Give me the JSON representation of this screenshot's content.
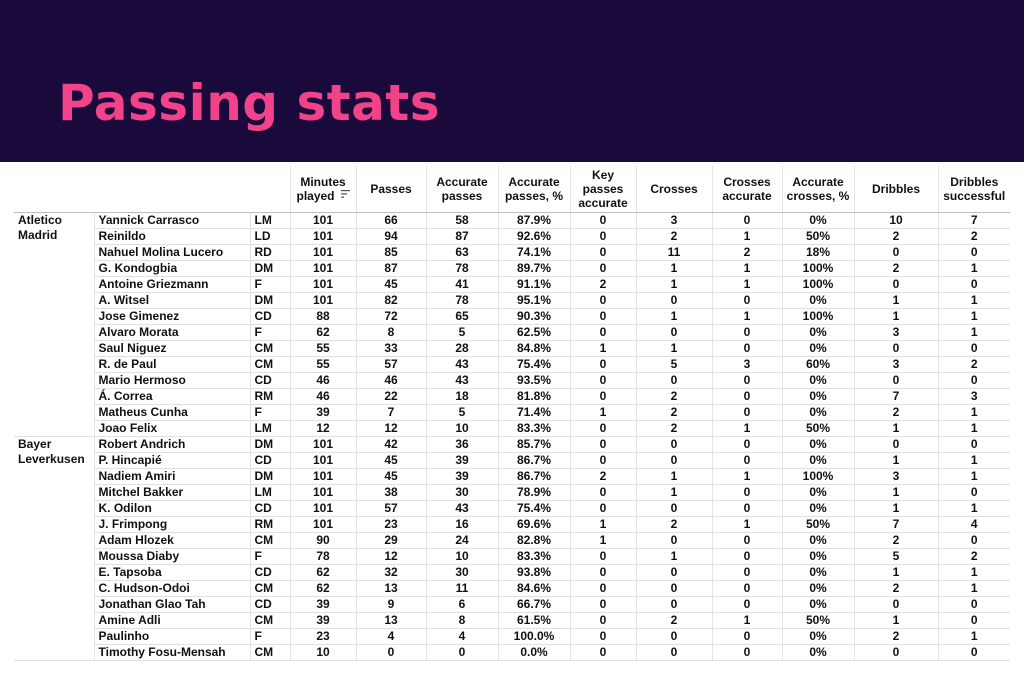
{
  "title": "Passing stats",
  "columns": [
    "Minutes played",
    "Passes",
    "Accurate passes",
    "Accurate passes, %",
    "Key passes accurate",
    "Crosses",
    "Crosses accurate",
    "Accurate crosses, %",
    "Dribbles",
    "Dribbles successful"
  ],
  "teams": [
    {
      "name": "Atletico Madrid",
      "players": [
        {
          "name": "Yannick Carrasco",
          "pos": "LM",
          "stats": [
            "101",
            "66",
            "58",
            "87.9%",
            "0",
            "3",
            "0",
            "0%",
            "10",
            "7"
          ]
        },
        {
          "name": "Reinildo",
          "pos": "LD",
          "stats": [
            "101",
            "94",
            "87",
            "92.6%",
            "0",
            "2",
            "1",
            "50%",
            "2",
            "2"
          ]
        },
        {
          "name": "Nahuel Molina Lucero",
          "pos": "RD",
          "stats": [
            "101",
            "85",
            "63",
            "74.1%",
            "0",
            "11",
            "2",
            "18%",
            "0",
            "0"
          ]
        },
        {
          "name": "G. Kondogbia",
          "pos": "DM",
          "stats": [
            "101",
            "87",
            "78",
            "89.7%",
            "0",
            "1",
            "1",
            "100%",
            "2",
            "1"
          ]
        },
        {
          "name": "Antoine Griezmann",
          "pos": "F",
          "stats": [
            "101",
            "45",
            "41",
            "91.1%",
            "2",
            "1",
            "1",
            "100%",
            "0",
            "0"
          ]
        },
        {
          "name": "A. Witsel",
          "pos": "DM",
          "stats": [
            "101",
            "82",
            "78",
            "95.1%",
            "0",
            "0",
            "0",
            "0%",
            "1",
            "1"
          ]
        },
        {
          "name": "Jose Gimenez",
          "pos": "CD",
          "stats": [
            "88",
            "72",
            "65",
            "90.3%",
            "0",
            "1",
            "1",
            "100%",
            "1",
            "1"
          ]
        },
        {
          "name": "Alvaro Morata",
          "pos": "F",
          "stats": [
            "62",
            "8",
            "5",
            "62.5%",
            "0",
            "0",
            "0",
            "0%",
            "3",
            "1"
          ]
        },
        {
          "name": "Saul Niguez",
          "pos": "CM",
          "stats": [
            "55",
            "33",
            "28",
            "84.8%",
            "1",
            "1",
            "0",
            "0%",
            "0",
            "0"
          ]
        },
        {
          "name": "R. de Paul",
          "pos": "CM",
          "stats": [
            "55",
            "57",
            "43",
            "75.4%",
            "0",
            "5",
            "3",
            "60%",
            "3",
            "2"
          ]
        },
        {
          "name": "Mario Hermoso",
          "pos": "CD",
          "stats": [
            "46",
            "46",
            "43",
            "93.5%",
            "0",
            "0",
            "0",
            "0%",
            "0",
            "0"
          ]
        },
        {
          "name": "Á. Correa",
          "pos": "RM",
          "stats": [
            "46",
            "22",
            "18",
            "81.8%",
            "0",
            "2",
            "0",
            "0%",
            "7",
            "3"
          ]
        },
        {
          "name": "Matheus Cunha",
          "pos": "F",
          "stats": [
            "39",
            "7",
            "5",
            "71.4%",
            "1",
            "2",
            "0",
            "0%",
            "2",
            "1"
          ]
        },
        {
          "name": "Joao Felix",
          "pos": "LM",
          "stats": [
            "12",
            "12",
            "10",
            "83.3%",
            "0",
            "2",
            "1",
            "50%",
            "1",
            "1"
          ]
        }
      ]
    },
    {
      "name": "Bayer Leverkusen",
      "players": [
        {
          "name": "Robert Andrich",
          "pos": "DM",
          "stats": [
            "101",
            "42",
            "36",
            "85.7%",
            "0",
            "0",
            "0",
            "0%",
            "0",
            "0"
          ]
        },
        {
          "name": "P. Hincapié",
          "pos": "CD",
          "stats": [
            "101",
            "45",
            "39",
            "86.7%",
            "0",
            "0",
            "0",
            "0%",
            "1",
            "1"
          ]
        },
        {
          "name": "Nadiem Amiri",
          "pos": "DM",
          "stats": [
            "101",
            "45",
            "39",
            "86.7%",
            "2",
            "1",
            "1",
            "100%",
            "3",
            "1"
          ]
        },
        {
          "name": "Mitchel Bakker",
          "pos": "LM",
          "stats": [
            "101",
            "38",
            "30",
            "78.9%",
            "0",
            "1",
            "0",
            "0%",
            "1",
            "0"
          ]
        },
        {
          "name": "K. Odilon",
          "pos": "CD",
          "stats": [
            "101",
            "57",
            "43",
            "75.4%",
            "0",
            "0",
            "0",
            "0%",
            "1",
            "1"
          ]
        },
        {
          "name": "J. Frimpong",
          "pos": "RM",
          "stats": [
            "101",
            "23",
            "16",
            "69.6%",
            "1",
            "2",
            "1",
            "50%",
            "7",
            "4"
          ]
        },
        {
          "name": "Adam Hlozek",
          "pos": "CM",
          "stats": [
            "90",
            "29",
            "24",
            "82.8%",
            "1",
            "0",
            "0",
            "0%",
            "2",
            "0"
          ]
        },
        {
          "name": "Moussa Diaby",
          "pos": "F",
          "stats": [
            "78",
            "12",
            "10",
            "83.3%",
            "0",
            "1",
            "0",
            "0%",
            "5",
            "2"
          ]
        },
        {
          "name": "E. Tapsoba",
          "pos": "CD",
          "stats": [
            "62",
            "32",
            "30",
            "93.8%",
            "0",
            "0",
            "0",
            "0%",
            "1",
            "1"
          ]
        },
        {
          "name": "C. Hudson-Odoi",
          "pos": "CM",
          "stats": [
            "62",
            "13",
            "11",
            "84.6%",
            "0",
            "0",
            "0",
            "0%",
            "2",
            "1"
          ]
        },
        {
          "name": "Jonathan Glao Tah",
          "pos": "CD",
          "stats": [
            "39",
            "9",
            "6",
            "66.7%",
            "0",
            "0",
            "0",
            "0%",
            "0",
            "0"
          ]
        },
        {
          "name": "Amine Adli",
          "pos": "CM",
          "stats": [
            "39",
            "13",
            "8",
            "61.5%",
            "0",
            "2",
            "1",
            "50%",
            "1",
            "0"
          ]
        },
        {
          "name": "Paulinho",
          "pos": "F",
          "stats": [
            "23",
            "4",
            "4",
            "100.0%",
            "0",
            "0",
            "0",
            "0%",
            "2",
            "1"
          ]
        },
        {
          "name": "Timothy Fosu-Mensah",
          "pos": "CM",
          "stats": [
            "10",
            "0",
            "0",
            "0.0%",
            "0",
            "0",
            "0",
            "0%",
            "0",
            "0"
          ]
        }
      ]
    }
  ],
  "colors": {
    "banner_bg": "#1a0a3b",
    "title": "#f2428a"
  },
  "icons": {
    "sort": "sort-descending-icon"
  }
}
